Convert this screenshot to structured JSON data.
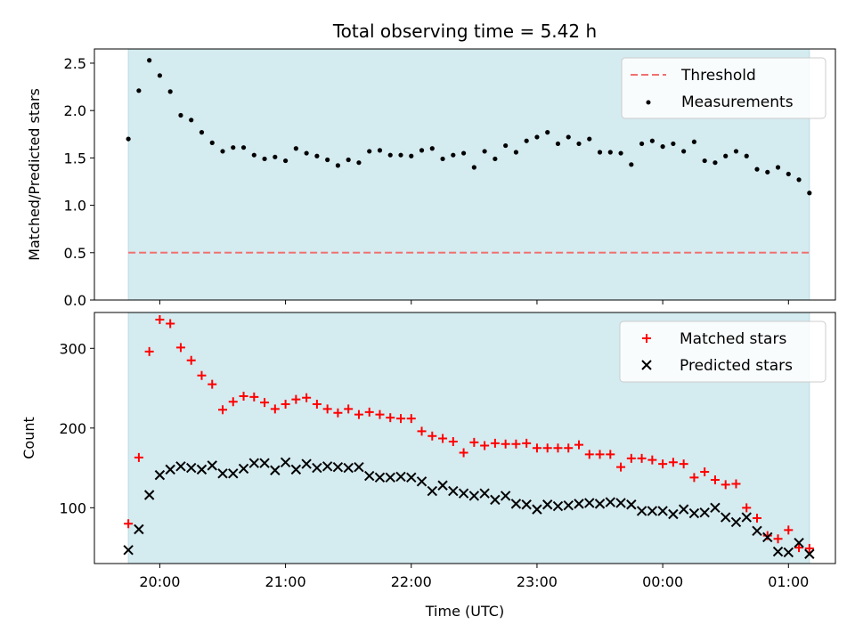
{
  "chart_data": [
    {
      "type": "scatter",
      "title": "Total observing time = 5.42 h",
      "xlabel": "",
      "ylabel": "Matched/Predicted stars",
      "ylim": [
        0,
        2.65
      ],
      "yticks": [
        "0.0",
        "0.5",
        "1.0",
        "1.5",
        "2.0",
        "2.5"
      ],
      "shaded_region": {
        "color": "#d4ebf0",
        "x_start": "19:45",
        "x_end": "01:10"
      },
      "threshold": {
        "name": "Threshold",
        "value": 0.5,
        "color": "#f07070"
      },
      "legend_position": "top-right",
      "series": [
        {
          "name": "Measurements",
          "color": "#000000",
          "x": [
            "19:45",
            "19:50",
            "19:55",
            "20:00",
            "20:05",
            "20:10",
            "20:15",
            "20:20",
            "20:25",
            "20:30",
            "20:35",
            "20:40",
            "20:45",
            "20:50",
            "20:55",
            "21:00",
            "21:05",
            "21:10",
            "21:15",
            "21:20",
            "21:25",
            "21:30",
            "21:35",
            "21:40",
            "21:45",
            "21:50",
            "21:55",
            "22:00",
            "22:05",
            "22:10",
            "22:15",
            "22:20",
            "22:25",
            "22:30",
            "22:35",
            "22:40",
            "22:45",
            "22:50",
            "22:55",
            "23:00",
            "23:05",
            "23:10",
            "23:15",
            "23:20",
            "23:25",
            "23:30",
            "23:35",
            "23:40",
            "23:45",
            "23:50",
            "23:55",
            "00:00",
            "00:05",
            "00:10",
            "00:15",
            "00:20",
            "00:25",
            "00:30",
            "00:35",
            "00:40",
            "00:45",
            "00:50",
            "00:55",
            "01:00",
            "01:05",
            "01:10"
          ],
          "values": [
            1.7,
            2.21,
            2.53,
            2.37,
            2.2,
            1.95,
            1.9,
            1.77,
            1.66,
            1.57,
            1.61,
            1.61,
            1.53,
            1.49,
            1.51,
            1.47,
            1.6,
            1.55,
            1.52,
            1.48,
            1.42,
            1.48,
            1.45,
            1.57,
            1.58,
            1.53,
            1.53,
            1.52,
            1.58,
            1.6,
            1.49,
            1.53,
            1.55,
            1.4,
            1.57,
            1.49,
            1.63,
            1.56,
            1.68,
            1.72,
            1.77,
            1.65,
            1.72,
            1.65,
            1.7,
            1.56,
            1.56,
            1.55,
            1.43,
            1.65,
            1.68,
            1.62,
            1.65,
            1.57,
            1.67,
            1.47,
            1.45,
            1.52,
            1.57,
            1.52,
            1.38,
            1.35,
            1.4,
            1.33,
            1.27,
            1.13
          ]
        }
      ]
    },
    {
      "type": "scatter",
      "title": "",
      "xlabel": "Time (UTC)",
      "ylabel": "Count",
      "ylim": [
        30,
        345
      ],
      "yticks": [
        "100",
        "200",
        "300"
      ],
      "xticks": [
        "20:00",
        "21:00",
        "22:00",
        "23:00",
        "00:00",
        "01:00"
      ],
      "shaded_region": {
        "color": "#d4ebf0",
        "x_start": "19:45",
        "x_end": "01:10"
      },
      "legend_position": "top-right",
      "series": [
        {
          "name": "Matched stars",
          "color": "#ff0000",
          "marker": "plus",
          "x": [
            "19:45",
            "19:50",
            "19:55",
            "20:00",
            "20:05",
            "20:10",
            "20:15",
            "20:20",
            "20:25",
            "20:30",
            "20:35",
            "20:40",
            "20:45",
            "20:50",
            "20:55",
            "21:00",
            "21:05",
            "21:10",
            "21:15",
            "21:20",
            "21:25",
            "21:30",
            "21:35",
            "21:40",
            "21:45",
            "21:50",
            "21:55",
            "22:00",
            "22:05",
            "22:10",
            "22:15",
            "22:20",
            "22:25",
            "22:30",
            "22:35",
            "22:40",
            "22:45",
            "22:50",
            "22:55",
            "23:00",
            "23:05",
            "23:10",
            "23:15",
            "23:20",
            "23:25",
            "23:30",
            "23:35",
            "23:40",
            "23:45",
            "23:50",
            "23:55",
            "00:00",
            "00:05",
            "00:10",
            "00:15",
            "00:20",
            "00:25",
            "00:30",
            "00:35",
            "00:40",
            "00:45",
            "00:50",
            "00:55",
            "01:00",
            "01:05",
            "01:10"
          ],
          "values": [
            80,
            163,
            296,
            336,
            331,
            301,
            285,
            266,
            255,
            223,
            233,
            240,
            239,
            232,
            224,
            230,
            236,
            238,
            230,
            224,
            219,
            224,
            217,
            220,
            217,
            213,
            212,
            212,
            196,
            190,
            187,
            183,
            169,
            182,
            178,
            181,
            180,
            180,
            181,
            175,
            175,
            175,
            175,
            179,
            167,
            167,
            167,
            151,
            162,
            162,
            160,
            155,
            157,
            155,
            138,
            145,
            135,
            129,
            130,
            100,
            87,
            65,
            61,
            72,
            50,
            49
          ]
        },
        {
          "name": "Predicted stars",
          "color": "#000000",
          "marker": "x",
          "x": [
            "19:45",
            "19:50",
            "19:55",
            "20:00",
            "20:05",
            "20:10",
            "20:15",
            "20:20",
            "20:25",
            "20:30",
            "20:35",
            "20:40",
            "20:45",
            "20:50",
            "20:55",
            "21:00",
            "21:05",
            "21:10",
            "21:15",
            "21:20",
            "21:25",
            "21:30",
            "21:35",
            "21:40",
            "21:45",
            "21:50",
            "21:55",
            "22:00",
            "22:05",
            "22:10",
            "22:15",
            "22:20",
            "22:25",
            "22:30",
            "22:35",
            "22:40",
            "22:45",
            "22:50",
            "22:55",
            "23:00",
            "23:05",
            "23:10",
            "23:15",
            "23:20",
            "23:25",
            "23:30",
            "23:35",
            "23:40",
            "23:45",
            "23:50",
            "23:55",
            "00:00",
            "00:05",
            "00:10",
            "00:15",
            "00:20",
            "00:25",
            "00:30",
            "00:35",
            "00:40",
            "00:45",
            "00:50",
            "00:55",
            "01:00",
            "01:05",
            "01:10"
          ],
          "values": [
            47,
            73,
            116,
            141,
            148,
            152,
            150,
            148,
            153,
            143,
            143,
            149,
            156,
            156,
            147,
            157,
            148,
            155,
            150,
            152,
            151,
            150,
            151,
            140,
            138,
            138,
            139,
            138,
            133,
            121,
            128,
            121,
            118,
            115,
            118,
            110,
            115,
            105,
            104,
            98,
            104,
            102,
            103,
            105,
            106,
            105,
            107,
            106,
            104,
            96,
            96,
            96,
            92,
            98,
            93,
            94,
            100,
            88,
            82,
            88,
            71,
            63,
            45,
            44,
            56,
            42
          ]
        }
      ]
    }
  ]
}
